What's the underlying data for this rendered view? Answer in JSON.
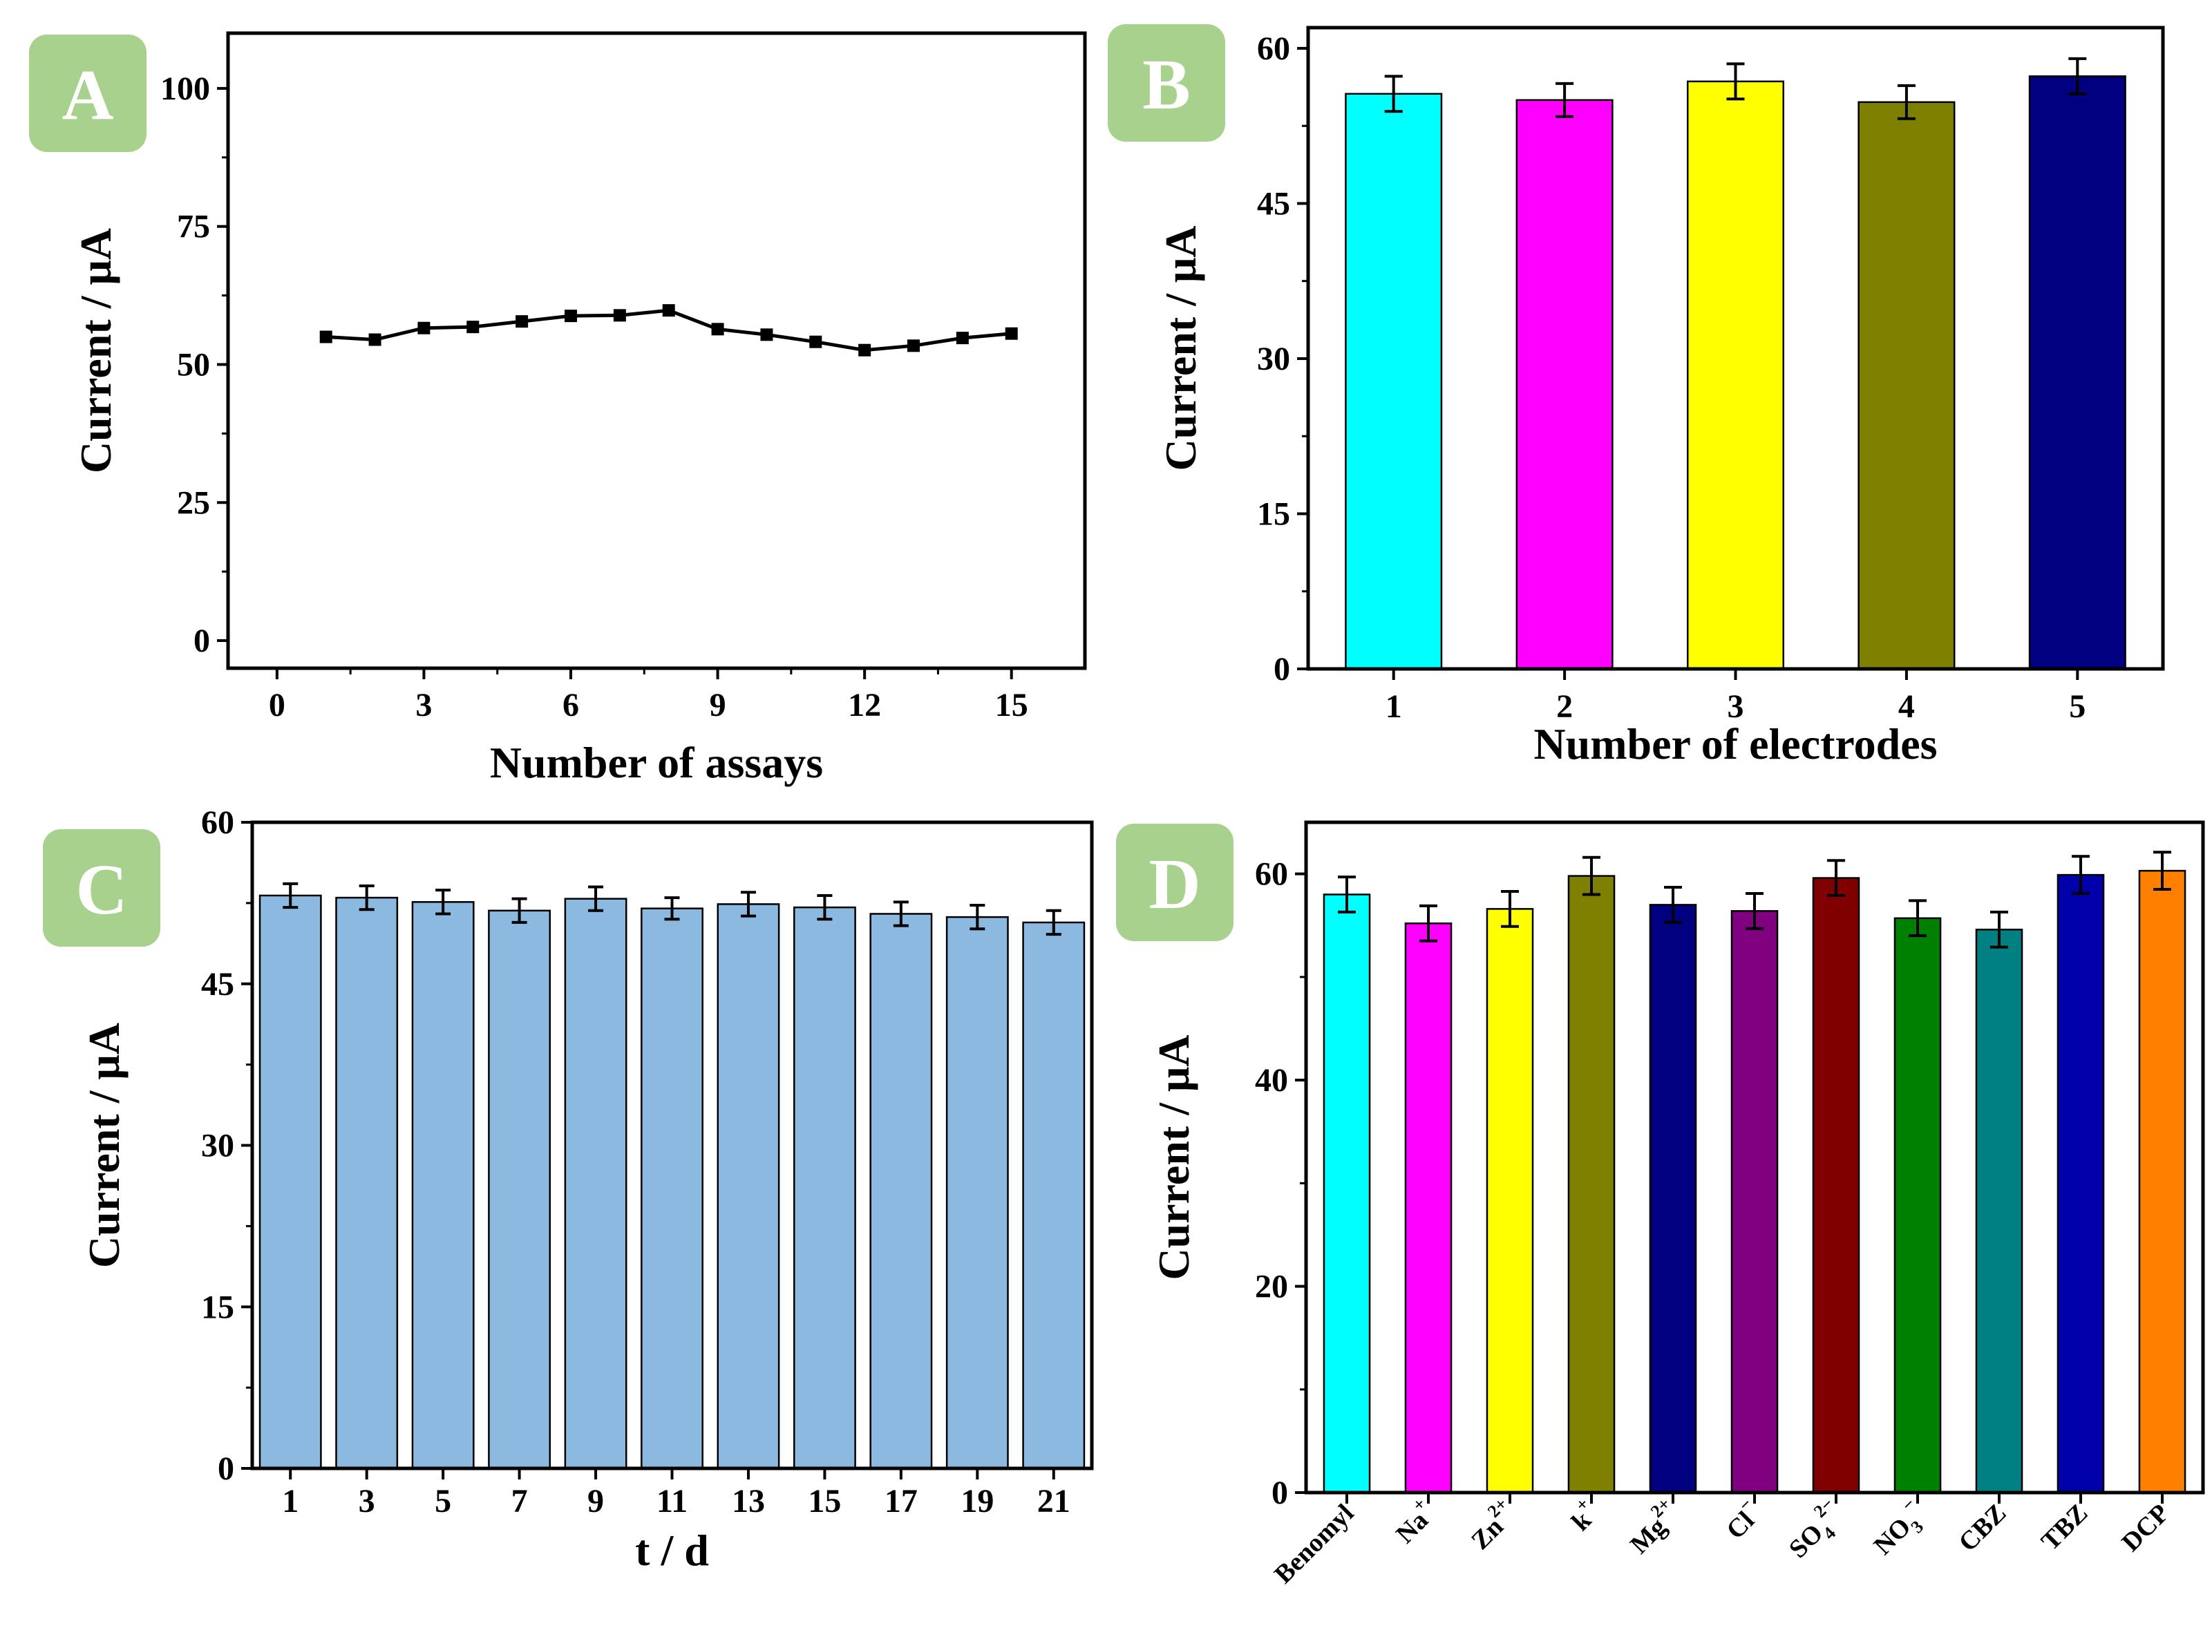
{
  "figure": {
    "panels": [
      {
        "id": "A",
        "badge": "A",
        "chart_data": {
          "type": "line",
          "title": "",
          "xlabel": "Number of assays",
          "ylabel": "Current / μA",
          "xlim": [
            -1.0,
            16.5
          ],
          "ylim": [
            -5,
            110
          ],
          "xticks": [
            0,
            3,
            6,
            9,
            12,
            15
          ],
          "yticks": [
            0,
            25,
            50,
            75,
            100
          ],
          "x": [
            1,
            2,
            3,
            4,
            5,
            6,
            7,
            8,
            9,
            10,
            11,
            12,
            13,
            14,
            15
          ],
          "series": [
            {
              "values": [
                55.0,
                54.5,
                56.6,
                56.8,
                57.8,
                58.8,
                58.9,
                59.8,
                56.4,
                55.4,
                54.1,
                52.6,
                53.4,
                54.8,
                55.6
              ]
            }
          ],
          "marker": "square",
          "line_color": "#000000",
          "grid": false
        }
      },
      {
        "id": "B",
        "badge": "B",
        "chart_data": {
          "type": "bar",
          "title": "",
          "xlabel": "Number of electrodes",
          "ylabel": "Current / μA",
          "ylim": [
            0,
            62
          ],
          "yticks": [
            0,
            15,
            30,
            45,
            60
          ],
          "categories": [
            "1",
            "2",
            "3",
            "4",
            "5"
          ],
          "values": [
            55.6,
            55.0,
            56.8,
            54.8,
            57.3
          ],
          "errors": [
            1.7,
            1.6,
            1.7,
            1.6,
            1.7
          ],
          "colors": [
            "#00FFFF",
            "#FF00FF",
            "#FFFF00",
            "#808000",
            "#000080"
          ],
          "grid": false
        }
      },
      {
        "id": "C",
        "badge": "C",
        "chart_data": {
          "type": "bar",
          "title": "",
          "xlabel": "t / d",
          "ylabel": "Current / μA",
          "ylim": [
            0,
            60
          ],
          "yticks": [
            0,
            15,
            30,
            45,
            60
          ],
          "categories": [
            "1",
            "3",
            "5",
            "7",
            "9",
            "11",
            "13",
            "15",
            "17",
            "19",
            "21"
          ],
          "values": [
            53.2,
            53.0,
            52.6,
            51.8,
            52.9,
            52.0,
            52.4,
            52.1,
            51.5,
            51.2,
            50.7
          ],
          "errors": [
            1.1,
            1.1,
            1.1,
            1.1,
            1.1,
            1.0,
            1.1,
            1.1,
            1.1,
            1.1,
            1.1
          ],
          "colors": [
            "#8CB9E0"
          ],
          "grid": false
        }
      },
      {
        "id": "D",
        "badge": "D",
        "chart_data": {
          "type": "bar",
          "title": "",
          "xlabel": "",
          "ylabel": "Current / μA",
          "ylim": [
            0,
            65
          ],
          "yticks": [
            0,
            20,
            40,
            60
          ],
          "categories": [
            {
              "base": "Benomyl"
            },
            {
              "base": "Na",
              "sup": "+"
            },
            {
              "base": "Zn",
              "sup": "2+"
            },
            {
              "base": "k",
              "sup": "+"
            },
            {
              "base": "Mg",
              "sup": "2+"
            },
            {
              "base": "Cl",
              "sup": "−"
            },
            {
              "base": "SO",
              "sub": "4",
              "sup": "2−"
            },
            {
              "base": "NO",
              "sub": "3",
              "sup": "−"
            },
            {
              "base": "CBZ"
            },
            {
              "base": "TBZ"
            },
            {
              "base": "DCP"
            }
          ],
          "values": [
            58.0,
            55.2,
            56.6,
            59.8,
            57.0,
            56.4,
            59.6,
            55.7,
            54.6,
            59.9,
            60.3
          ],
          "errors": [
            1.7,
            1.7,
            1.7,
            1.8,
            1.7,
            1.7,
            1.7,
            1.7,
            1.7,
            1.8,
            1.8
          ],
          "colors": [
            "#00FFFF",
            "#FF00FF",
            "#FFFF00",
            "#808000",
            "#000080",
            "#800080",
            "#800000",
            "#008000",
            "#008080",
            "#0000AA",
            "#FF8000"
          ],
          "grid": false
        }
      }
    ],
    "colors": {
      "badge": "#A8D18D",
      "axis": "#000000",
      "bar_edge": "#000000"
    }
  }
}
